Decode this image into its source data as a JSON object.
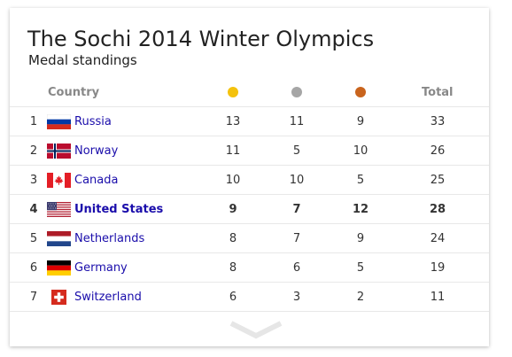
{
  "card": {
    "title": "The Sochi 2014 Winter Olympics",
    "subtitle": "Medal standings"
  },
  "table": {
    "headers": {
      "country": "Country",
      "gold_icon": "gold-medal-dot",
      "silver_icon": "silver-medal-dot",
      "bronze_icon": "bronze-medal-dot",
      "total": "Total"
    },
    "colors": {
      "gold": "#f4c20d",
      "silver": "#a6a6a6",
      "bronze": "#c9641d",
      "link": "#1a0dab"
    },
    "rows": [
      {
        "rank": "1",
        "country": "Russia",
        "flag": "russia-flag-icon",
        "gold": "13",
        "silver": "11",
        "bronze": "9",
        "total": "33",
        "highlighted": false
      },
      {
        "rank": "2",
        "country": "Norway",
        "flag": "norway-flag-icon",
        "gold": "11",
        "silver": "5",
        "bronze": "10",
        "total": "26",
        "highlighted": false
      },
      {
        "rank": "3",
        "country": "Canada",
        "flag": "canada-flag-icon",
        "gold": "10",
        "silver": "10",
        "bronze": "5",
        "total": "25",
        "highlighted": false
      },
      {
        "rank": "4",
        "country": "United States",
        "flag": "united-states-flag-icon",
        "gold": "9",
        "silver": "7",
        "bronze": "12",
        "total": "28",
        "highlighted": true
      },
      {
        "rank": "5",
        "country": "Netherlands",
        "flag": "netherlands-flag-icon",
        "gold": "8",
        "silver": "7",
        "bronze": "9",
        "total": "24",
        "highlighted": false
      },
      {
        "rank": "6",
        "country": "Germany",
        "flag": "germany-flag-icon",
        "gold": "8",
        "silver": "6",
        "bronze": "5",
        "total": "19",
        "highlighted": false
      },
      {
        "rank": "7",
        "country": "Switzerland",
        "flag": "switzerland-flag-icon",
        "gold": "6",
        "silver": "3",
        "bronze": "2",
        "total": "11",
        "highlighted": false
      }
    ]
  },
  "expand_icon": "chevron-down-icon"
}
